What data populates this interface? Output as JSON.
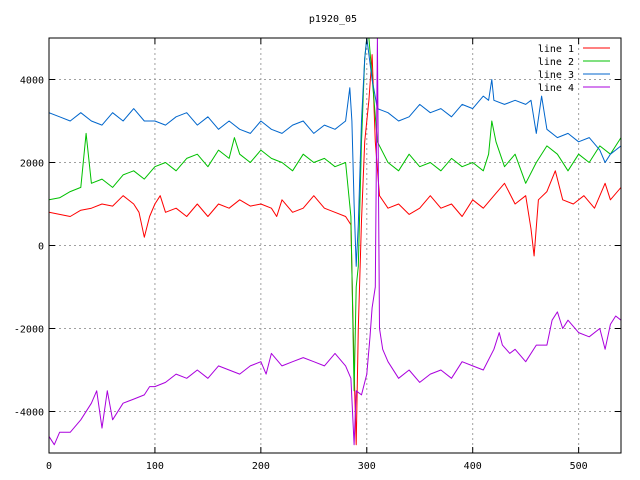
{
  "chart_data": {
    "type": "line",
    "title": "p1920_05",
    "xlabel": "",
    "ylabel": "",
    "xlim": [
      0,
      540
    ],
    "ylim": [
      -5000,
      5000
    ],
    "xticks": [
      0,
      100,
      200,
      300,
      400,
      500
    ],
    "yticks": [
      -4000,
      -2000,
      0,
      2000,
      4000
    ],
    "grid": true,
    "legend_position": "top-right",
    "series": [
      {
        "name": "line 1",
        "color": "#ff0000",
        "points": [
          [
            0,
            800
          ],
          [
            10,
            750
          ],
          [
            20,
            700
          ],
          [
            30,
            850
          ],
          [
            40,
            900
          ],
          [
            50,
            1000
          ],
          [
            60,
            950
          ],
          [
            70,
            1200
          ],
          [
            80,
            1000
          ],
          [
            85,
            800
          ],
          [
            90,
            200
          ],
          [
            95,
            700
          ],
          [
            100,
            1000
          ],
          [
            105,
            1200
          ],
          [
            110,
            800
          ],
          [
            120,
            900
          ],
          [
            130,
            700
          ],
          [
            140,
            1000
          ],
          [
            150,
            700
          ],
          [
            160,
            1000
          ],
          [
            170,
            900
          ],
          [
            180,
            1100
          ],
          [
            190,
            950
          ],
          [
            200,
            1000
          ],
          [
            210,
            900
          ],
          [
            215,
            700
          ],
          [
            220,
            1100
          ],
          [
            230,
            800
          ],
          [
            240,
            900
          ],
          [
            250,
            1200
          ],
          [
            260,
            900
          ],
          [
            270,
            800
          ],
          [
            280,
            700
          ],
          [
            285,
            500
          ],
          [
            288,
            -3000
          ],
          [
            290,
            -4800
          ],
          [
            292,
            -2000
          ],
          [
            295,
            600
          ],
          [
            298,
            2500
          ],
          [
            302,
            3500
          ],
          [
            305,
            4600
          ],
          [
            308,
            2500
          ],
          [
            312,
            1200
          ],
          [
            320,
            900
          ],
          [
            330,
            1000
          ],
          [
            340,
            750
          ],
          [
            350,
            900
          ],
          [
            360,
            1200
          ],
          [
            370,
            900
          ],
          [
            380,
            1000
          ],
          [
            390,
            700
          ],
          [
            400,
            1100
          ],
          [
            410,
            900
          ],
          [
            420,
            1200
          ],
          [
            430,
            1500
          ],
          [
            440,
            1000
          ],
          [
            450,
            1200
          ],
          [
            455,
            400
          ],
          [
            458,
            -250
          ],
          [
            462,
            1100
          ],
          [
            470,
            1300
          ],
          [
            478,
            1800
          ],
          [
            485,
            1100
          ],
          [
            495,
            1000
          ],
          [
            505,
            1200
          ],
          [
            515,
            900
          ],
          [
            525,
            1500
          ],
          [
            530,
            1100
          ],
          [
            540,
            1400
          ]
        ]
      },
      {
        "name": "line 2",
        "color": "#00c000",
        "points": [
          [
            0,
            1100
          ],
          [
            10,
            1150
          ],
          [
            20,
            1300
          ],
          [
            30,
            1400
          ],
          [
            35,
            2700
          ],
          [
            40,
            1500
          ],
          [
            50,
            1600
          ],
          [
            60,
            1400
          ],
          [
            70,
            1700
          ],
          [
            80,
            1800
          ],
          [
            90,
            1600
          ],
          [
            100,
            1900
          ],
          [
            110,
            2000
          ],
          [
            120,
            1800
          ],
          [
            130,
            2100
          ],
          [
            140,
            2200
          ],
          [
            150,
            1900
          ],
          [
            160,
            2300
          ],
          [
            170,
            2100
          ],
          [
            175,
            2600
          ],
          [
            180,
            2200
          ],
          [
            190,
            2000
          ],
          [
            200,
            2300
          ],
          [
            210,
            2100
          ],
          [
            220,
            2000
          ],
          [
            230,
            1800
          ],
          [
            240,
            2200
          ],
          [
            250,
            2000
          ],
          [
            260,
            2100
          ],
          [
            270,
            1900
          ],
          [
            280,
            2000
          ],
          [
            285,
            700
          ],
          [
            288,
            -3500
          ],
          [
            290,
            -1000
          ],
          [
            292,
            -500
          ],
          [
            295,
            2500
          ],
          [
            298,
            4500
          ],
          [
            300,
            5000
          ],
          [
            302,
            5000
          ],
          [
            310,
            2500
          ],
          [
            320,
            2000
          ],
          [
            330,
            1800
          ],
          [
            340,
            2200
          ],
          [
            350,
            1900
          ],
          [
            360,
            2000
          ],
          [
            370,
            1800
          ],
          [
            380,
            2100
          ],
          [
            390,
            1900
          ],
          [
            400,
            2000
          ],
          [
            410,
            1800
          ],
          [
            415,
            2200
          ],
          [
            418,
            3000
          ],
          [
            422,
            2500
          ],
          [
            430,
            1900
          ],
          [
            440,
            2200
          ],
          [
            450,
            1500
          ],
          [
            460,
            2000
          ],
          [
            470,
            2400
          ],
          [
            480,
            2200
          ],
          [
            490,
            1800
          ],
          [
            500,
            2200
          ],
          [
            510,
            2000
          ],
          [
            520,
            2400
          ],
          [
            530,
            2200
          ],
          [
            540,
            2600
          ]
        ]
      },
      {
        "name": "line 3",
        "color": "#0066cc",
        "points": [
          [
            0,
            3200
          ],
          [
            10,
            3100
          ],
          [
            20,
            3000
          ],
          [
            30,
            3200
          ],
          [
            40,
            3000
          ],
          [
            50,
            2900
          ],
          [
            60,
            3200
          ],
          [
            70,
            3000
          ],
          [
            80,
            3300
          ],
          [
            90,
            3000
          ],
          [
            100,
            3000
          ],
          [
            110,
            2900
          ],
          [
            120,
            3100
          ],
          [
            130,
            3200
          ],
          [
            140,
            2900
          ],
          [
            150,
            3100
          ],
          [
            160,
            2800
          ],
          [
            170,
            3000
          ],
          [
            180,
            2800
          ],
          [
            190,
            2700
          ],
          [
            200,
            3000
          ],
          [
            210,
            2800
          ],
          [
            220,
            2700
          ],
          [
            230,
            2900
          ],
          [
            240,
            3000
          ],
          [
            250,
            2700
          ],
          [
            260,
            2900
          ],
          [
            270,
            2800
          ],
          [
            280,
            3000
          ],
          [
            284,
            3800
          ],
          [
            286,
            3000
          ],
          [
            288,
            1000
          ],
          [
            290,
            -500
          ],
          [
            292,
            500
          ],
          [
            295,
            3000
          ],
          [
            298,
            4500
          ],
          [
            300,
            5000
          ],
          [
            305,
            4000
          ],
          [
            310,
            3300
          ],
          [
            320,
            3200
          ],
          [
            330,
            3000
          ],
          [
            340,
            3100
          ],
          [
            350,
            3400
          ],
          [
            360,
            3200
          ],
          [
            370,
            3300
          ],
          [
            380,
            3100
          ],
          [
            390,
            3400
          ],
          [
            400,
            3300
          ],
          [
            410,
            3600
          ],
          [
            415,
            3500
          ],
          [
            418,
            4000
          ],
          [
            420,
            3500
          ],
          [
            430,
            3400
          ],
          [
            440,
            3500
          ],
          [
            450,
            3400
          ],
          [
            455,
            3500
          ],
          [
            460,
            2700
          ],
          [
            465,
            3600
          ],
          [
            470,
            2800
          ],
          [
            480,
            2600
          ],
          [
            490,
            2700
          ],
          [
            500,
            2500
          ],
          [
            510,
            2600
          ],
          [
            520,
            2300
          ],
          [
            525,
            2000
          ],
          [
            530,
            2200
          ],
          [
            540,
            2400
          ]
        ]
      },
      {
        "name": "line 4",
        "color": "#aa00dd",
        "points": [
          [
            0,
            -4600
          ],
          [
            5,
            -4800
          ],
          [
            10,
            -4500
          ],
          [
            20,
            -4500
          ],
          [
            30,
            -4200
          ],
          [
            40,
            -3800
          ],
          [
            45,
            -3500
          ],
          [
            50,
            -4400
          ],
          [
            55,
            -3500
          ],
          [
            60,
            -4200
          ],
          [
            70,
            -3800
          ],
          [
            80,
            -3700
          ],
          [
            90,
            -3600
          ],
          [
            95,
            -3400
          ],
          [
            100,
            -3400
          ],
          [
            110,
            -3300
          ],
          [
            120,
            -3100
          ],
          [
            130,
            -3200
          ],
          [
            140,
            -3000
          ],
          [
            150,
            -3200
          ],
          [
            160,
            -2900
          ],
          [
            170,
            -3000
          ],
          [
            180,
            -3100
          ],
          [
            190,
            -2900
          ],
          [
            200,
            -2800
          ],
          [
            205,
            -3100
          ],
          [
            210,
            -2600
          ],
          [
            220,
            -2900
          ],
          [
            230,
            -2800
          ],
          [
            240,
            -2700
          ],
          [
            250,
            -2800
          ],
          [
            260,
            -2900
          ],
          [
            270,
            -2600
          ],
          [
            280,
            -2900
          ],
          [
            285,
            -3200
          ],
          [
            288,
            -4800
          ],
          [
            290,
            -3500
          ],
          [
            295,
            -3600
          ],
          [
            300,
            -3100
          ],
          [
            303,
            -2200
          ],
          [
            305,
            -1500
          ],
          [
            308,
            -1000
          ],
          [
            310,
            5000
          ],
          [
            312,
            -2000
          ],
          [
            315,
            -2500
          ],
          [
            320,
            -2800
          ],
          [
            330,
            -3200
          ],
          [
            340,
            -3000
          ],
          [
            350,
            -3300
          ],
          [
            360,
            -3100
          ],
          [
            370,
            -3000
          ],
          [
            380,
            -3200
          ],
          [
            390,
            -2800
          ],
          [
            400,
            -2900
          ],
          [
            410,
            -3000
          ],
          [
            420,
            -2500
          ],
          [
            425,
            -2100
          ],
          [
            428,
            -2400
          ],
          [
            435,
            -2600
          ],
          [
            440,
            -2500
          ],
          [
            450,
            -2800
          ],
          [
            460,
            -2400
          ],
          [
            470,
            -2400
          ],
          [
            475,
            -1800
          ],
          [
            480,
            -1600
          ],
          [
            485,
            -2000
          ],
          [
            490,
            -1800
          ],
          [
            500,
            -2100
          ],
          [
            510,
            -2200
          ],
          [
            520,
            -2000
          ],
          [
            525,
            -2500
          ],
          [
            530,
            -1900
          ],
          [
            535,
            -1700
          ],
          [
            540,
            -1800
          ]
        ]
      }
    ]
  }
}
